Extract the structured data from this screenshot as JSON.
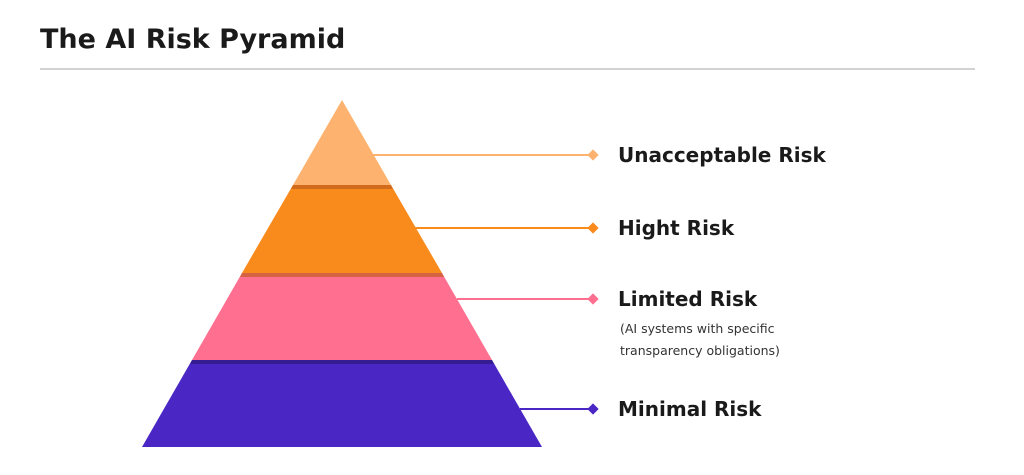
{
  "title": "The AI Risk Pyramid",
  "tiers": [
    {
      "label": "Unacceptable Risk"
    },
    {
      "label": "Hight Risk"
    },
    {
      "label": "Limited Risk",
      "note_lines": [
        "(AI systems with specific",
        "transparency obligations)"
      ]
    },
    {
      "label": "Minimal Risk"
    }
  ]
}
